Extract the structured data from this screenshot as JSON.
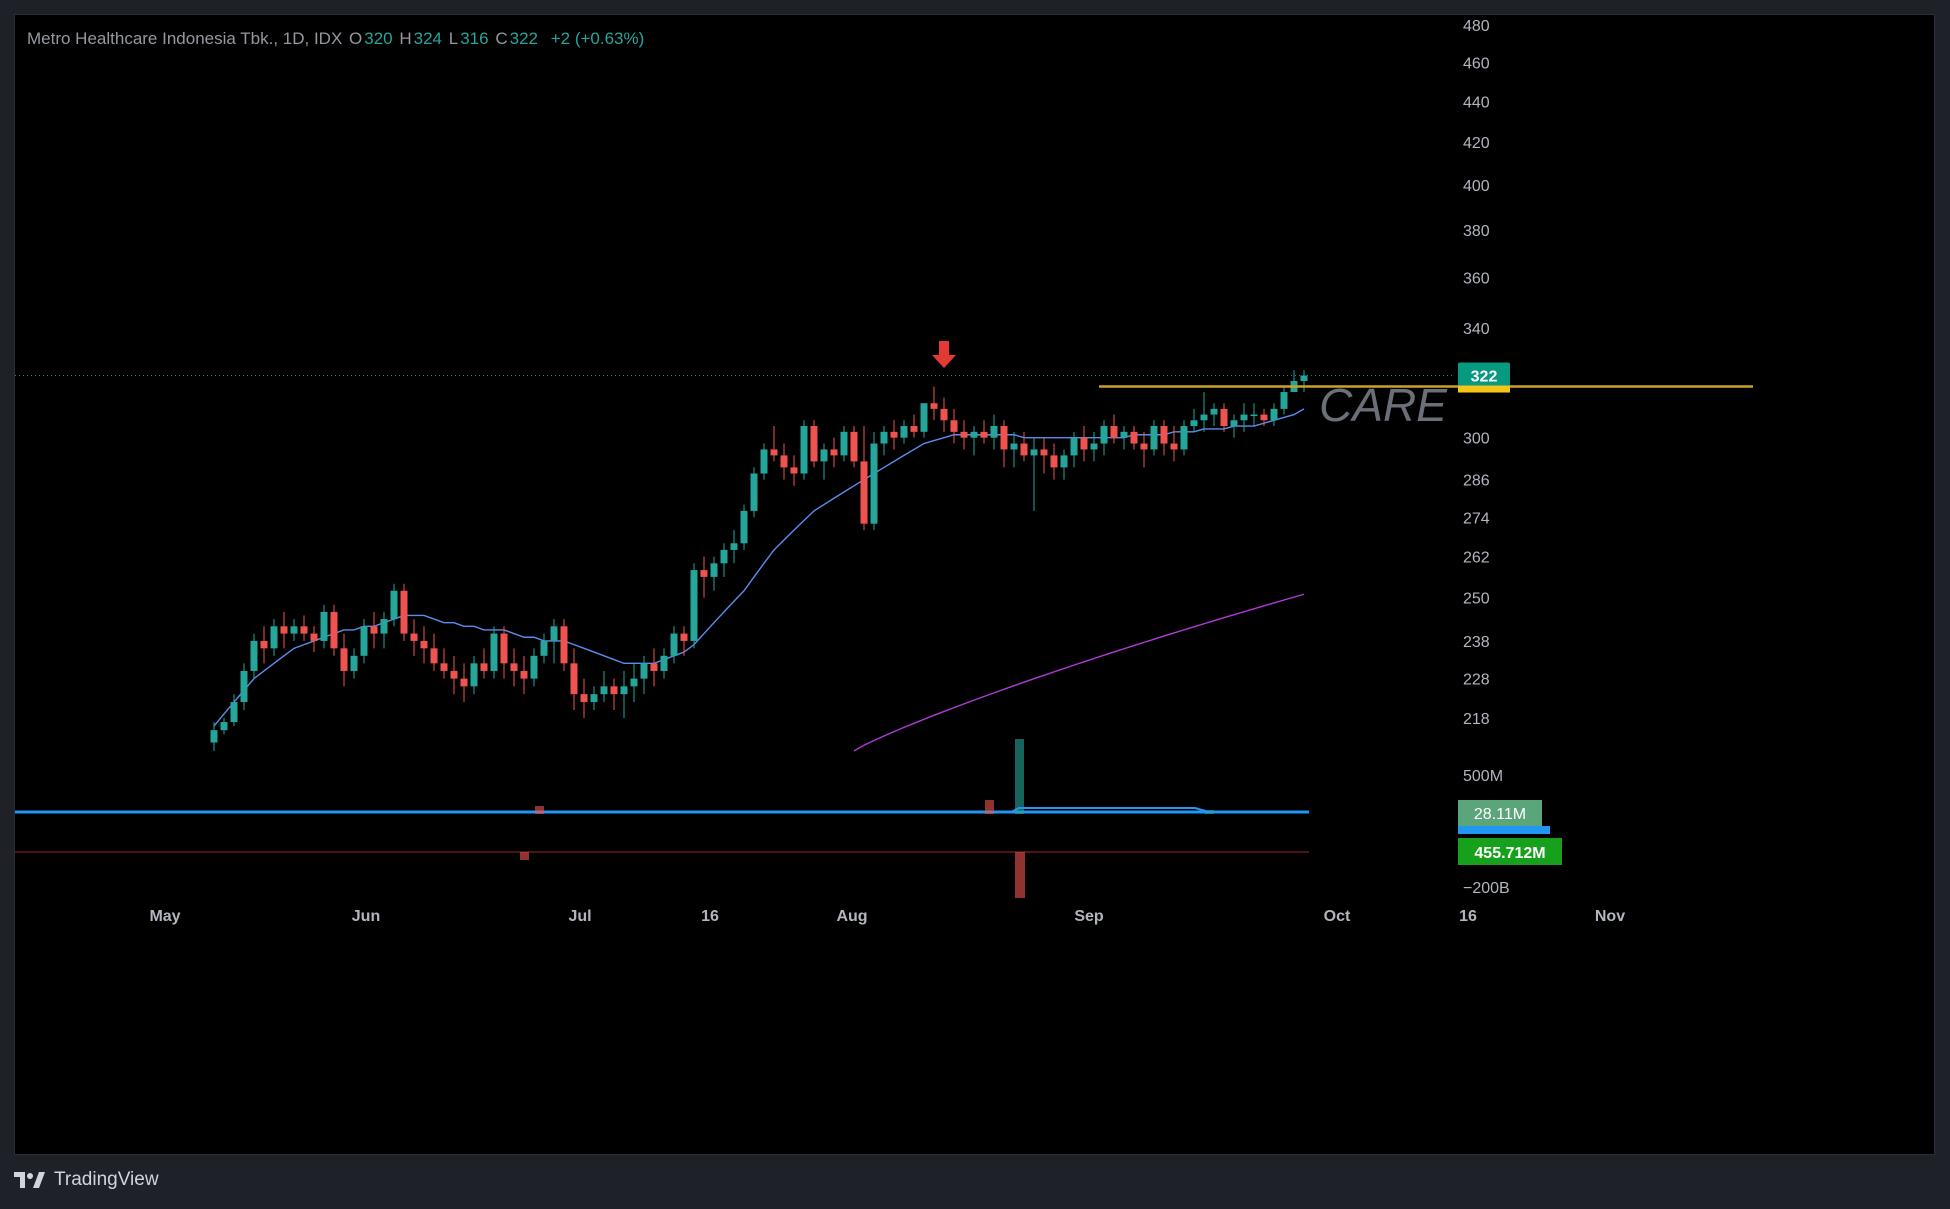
{
  "legend": {
    "symbol": "Metro Healthcare Indonesia Tbk., 1D, IDX",
    "open_label": "O",
    "open": "320",
    "high_label": "H",
    "high": "324",
    "low_label": "L",
    "low": "316",
    "close_label": "C",
    "close": "322",
    "change": "+2 (+0.63%)"
  },
  "watermark": "CARE",
  "footer": {
    "brand": "TradingView"
  },
  "colors": {
    "up": "#26a69a",
    "down": "#ef5350",
    "ema_fast": "#5b8def",
    "ema_slow": "#b03bd9",
    "resistance": "#c9a227",
    "arrow": "#e53935",
    "price_badge": "#089981"
  },
  "icons": [
    "tradingview-logo-icon",
    "down-arrow-icon"
  ],
  "chart_data": {
    "type": "candlestick",
    "price_axis": {
      "ticks": [
        "480",
        "460",
        "440",
        "420",
        "400",
        "380",
        "360",
        "340",
        "300",
        "286",
        "274",
        "262",
        "250",
        "238",
        "228",
        "218"
      ],
      "scale": "log"
    },
    "volume_axis": {
      "ticks": [
        "500M",
        "−200B"
      ]
    },
    "time_axis": {
      "labels": [
        "May",
        "Jun",
        "Jul",
        "16",
        "Aug",
        "Sep",
        "Oct",
        "16",
        "Nov"
      ]
    },
    "badges": {
      "last_price": "322",
      "volume": "28.11M",
      "indicator": "455.712M"
    },
    "resistance_level": 318,
    "candles": [
      [
        212,
        217,
        210,
        215
      ],
      [
        215,
        218,
        214,
        217
      ],
      [
        217,
        224,
        216,
        222
      ],
      [
        222,
        232,
        220,
        230
      ],
      [
        230,
        240,
        228,
        238
      ],
      [
        238,
        242,
        232,
        236
      ],
      [
        236,
        244,
        234,
        242
      ],
      [
        242,
        246,
        236,
        240
      ],
      [
        240,
        244,
        238,
        242
      ],
      [
        242,
        245,
        238,
        240
      ],
      [
        240,
        242,
        235,
        238
      ],
      [
        238,
        248,
        236,
        246
      ],
      [
        246,
        248,
        234,
        236
      ],
      [
        236,
        240,
        226,
        230
      ],
      [
        230,
        236,
        228,
        234
      ],
      [
        234,
        244,
        232,
        242
      ],
      [
        242,
        246,
        236,
        240
      ],
      [
        240,
        246,
        236,
        244
      ],
      [
        244,
        254,
        242,
        252
      ],
      [
        252,
        254,
        238,
        240
      ],
      [
        240,
        244,
        234,
        238
      ],
      [
        238,
        242,
        232,
        236
      ],
      [
        236,
        240,
        230,
        232
      ],
      [
        232,
        236,
        228,
        230
      ],
      [
        230,
        234,
        224,
        228
      ],
      [
        228,
        232,
        222,
        226
      ],
      [
        226,
        234,
        224,
        232
      ],
      [
        232,
        236,
        228,
        230
      ],
      [
        230,
        242,
        228,
        240
      ],
      [
        240,
        242,
        228,
        232
      ],
      [
        232,
        236,
        226,
        230
      ],
      [
        230,
        234,
        224,
        228
      ],
      [
        228,
        236,
        226,
        234
      ],
      [
        234,
        240,
        232,
        238
      ],
      [
        238,
        244,
        232,
        242
      ],
      [
        242,
        244,
        230,
        232
      ],
      [
        232,
        236,
        220,
        224
      ],
      [
        224,
        228,
        218,
        222
      ],
      [
        222,
        226,
        220,
        224
      ],
      [
        224,
        230,
        222,
        226
      ],
      [
        226,
        228,
        220,
        224
      ],
      [
        224,
        230,
        218,
        226
      ],
      [
        226,
        232,
        222,
        228
      ],
      [
        228,
        234,
        224,
        232
      ],
      [
        232,
        236,
        226,
        230
      ],
      [
        230,
        236,
        228,
        234
      ],
      [
        234,
        242,
        232,
        240
      ],
      [
        240,
        242,
        234,
        238
      ],
      [
        238,
        260,
        236,
        258
      ],
      [
        258,
        262,
        250,
        256
      ],
      [
        256,
        262,
        252,
        260
      ],
      [
        260,
        266,
        256,
        264
      ],
      [
        264,
        270,
        260,
        266
      ],
      [
        266,
        278,
        264,
        276
      ],
      [
        276,
        290,
        274,
        288
      ],
      [
        288,
        298,
        286,
        296
      ],
      [
        296,
        304,
        292,
        294
      ],
      [
        294,
        298,
        286,
        290
      ],
      [
        290,
        294,
        284,
        288
      ],
      [
        288,
        306,
        286,
        304
      ],
      [
        304,
        306,
        290,
        292
      ],
      [
        292,
        298,
        286,
        296
      ],
      [
        296,
        300,
        290,
        294
      ],
      [
        294,
        304,
        292,
        302
      ],
      [
        302,
        304,
        290,
        292
      ],
      [
        292,
        304,
        270,
        272
      ],
      [
        272,
        302,
        270,
        298
      ],
      [
        298,
        304,
        294,
        302
      ],
      [
        302,
        306,
        296,
        300
      ],
      [
        300,
        306,
        298,
        304
      ],
      [
        304,
        308,
        300,
        302
      ],
      [
        302,
        312,
        300,
        312
      ],
      [
        312,
        318,
        306,
        310
      ],
      [
        310,
        314,
        302,
        306
      ],
      [
        306,
        310,
        298,
        302
      ],
      [
        302,
        306,
        296,
        300
      ],
      [
        300,
        304,
        294,
        302
      ],
      [
        302,
        306,
        298,
        300
      ],
      [
        300,
        308,
        296,
        304
      ],
      [
        304,
        306,
        290,
        296
      ],
      [
        296,
        302,
        290,
        298
      ],
      [
        298,
        302,
        292,
        294
      ],
      [
        294,
        300,
        276,
        296
      ],
      [
        296,
        300,
        288,
        294
      ],
      [
        294,
        298,
        286,
        290
      ],
      [
        290,
        296,
        286,
        294
      ],
      [
        294,
        302,
        290,
        300
      ],
      [
        300,
        304,
        292,
        296
      ],
      [
        296,
        302,
        292,
        298
      ],
      [
        298,
        306,
        294,
        304
      ],
      [
        304,
        308,
        298,
        300
      ],
      [
        300,
        304,
        296,
        302
      ],
      [
        302,
        304,
        296,
        298
      ],
      [
        298,
        302,
        290,
        296
      ],
      [
        296,
        306,
        294,
        304
      ],
      [
        304,
        306,
        294,
        298
      ],
      [
        298,
        304,
        292,
        296
      ],
      [
        296,
        306,
        294,
        304
      ],
      [
        304,
        310,
        302,
        306
      ],
      [
        306,
        316,
        302,
        308
      ],
      [
        308,
        312,
        304,
        310
      ],
      [
        310,
        312,
        302,
        304
      ],
      [
        304,
        308,
        300,
        306
      ],
      [
        306,
        312,
        302,
        308
      ],
      [
        308,
        312,
        304,
        308
      ],
      [
        308,
        310,
        304,
        306
      ],
      [
        306,
        312,
        304,
        310
      ],
      [
        310,
        318,
        308,
        316
      ],
      [
        316,
        324,
        316,
        320
      ],
      [
        320,
        324,
        316,
        322
      ]
    ],
    "ema20": [
      216,
      219,
      222,
      225,
      228,
      230,
      232,
      234,
      236,
      237,
      238,
      239,
      240,
      241,
      241,
      242,
      242,
      243,
      244,
      245,
      245,
      245,
      244,
      243,
      243,
      242,
      242,
      241,
      241,
      241,
      240,
      239,
      239,
      238,
      238,
      238,
      237,
      236,
      235,
      234,
      233,
      232,
      232,
      232,
      232,
      233,
      234,
      235,
      237,
      240,
      243,
      246,
      249,
      252,
      256,
      260,
      264,
      267,
      270,
      273,
      276,
      278,
      280,
      282,
      284,
      286,
      288,
      290,
      292,
      294,
      296,
      298,
      299,
      300,
      301,
      301,
      301,
      301,
      301,
      301,
      301,
      300,
      300,
      300,
      300,
      300,
      300,
      300,
      300,
      300,
      300,
      300,
      301,
      301,
      301,
      301,
      302,
      302,
      302,
      303,
      303,
      303,
      304,
      304,
      304,
      305,
      306,
      307,
      308,
      310
    ],
    "ema_slow_range": [
      210,
      251
    ]
  }
}
